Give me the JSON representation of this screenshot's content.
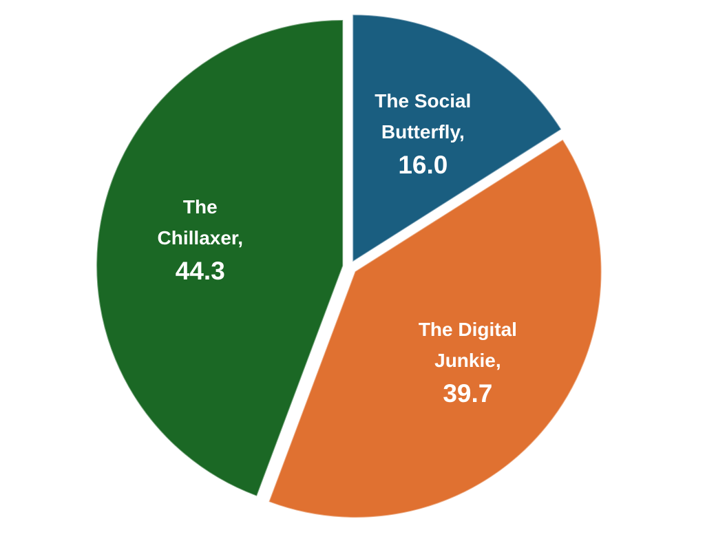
{
  "chart_data": {
    "type": "pie",
    "categories": [
      "The Social Butterfly,",
      "The Digital Junkie,",
      "The Chillaxer,"
    ],
    "values": [
      16.0,
      39.7,
      44.3
    ],
    "value_labels": [
      "16.0",
      "39.7",
      "44.3"
    ],
    "colors": [
      "#1a5e80",
      "#e07131",
      "#1b6825"
    ]
  }
}
